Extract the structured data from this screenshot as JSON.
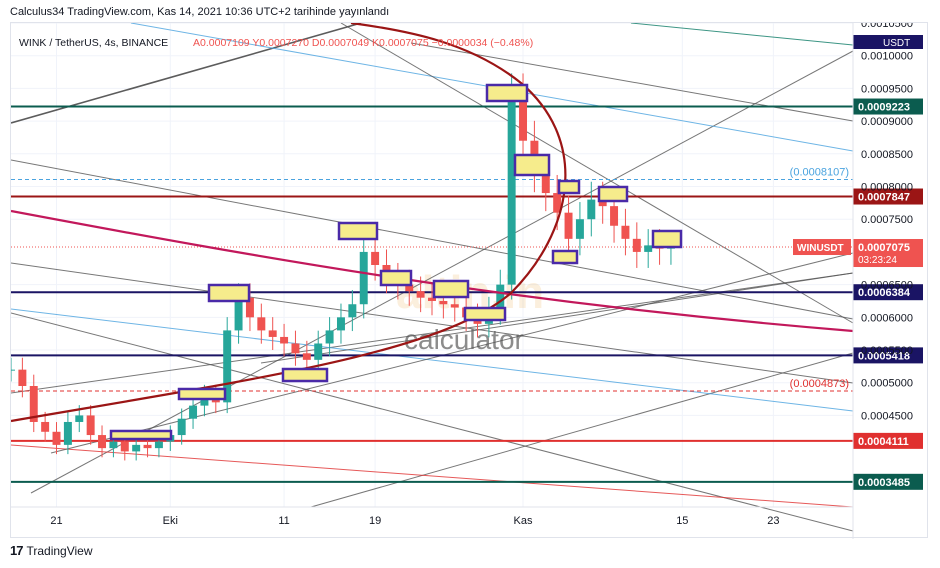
{
  "header": {
    "publish_line": "Calculus34 TradingView.com, Kas 14, 2021 10:36 UTC+2 tarihinde yayınlandı",
    "symbol_line": "WINK / TetherUS, 4s, BINANCE",
    "ohlc_line": "A0.0007109 Y0.0007270 D0.0007049 K0.0007075 −0.0000034 (−0.48%)"
  },
  "footer": {
    "brand": "TradingView"
  },
  "watermark": {
    "brand": "altin.in",
    "sub": "calculator"
  },
  "colors": {
    "navy": "#1a1464",
    "teal": "#0b5c4f",
    "dark_red": "#9b1515",
    "red": "#e0302f",
    "magenta": "#c2185b",
    "blue_thin": "#4aa3df",
    "grey_line": "#555555",
    "candle_up": "#26a69a",
    "candle_down": "#ef5350",
    "box_fill": "#f6ec8c",
    "box_stroke": "#4a2aa8"
  },
  "chart_data": {
    "type": "candlestick",
    "symbol": "WINK / TetherUS",
    "timeframe": "4s",
    "exchange": "BINANCE",
    "y_axis": {
      "unit": "USDT",
      "ylim": [
        0.00031,
        0.00105
      ],
      "ticks": [
        "0.0010500",
        "0.0010000",
        "0.0009500",
        "0.0009000",
        "0.0008500",
        "0.0008000",
        "0.0007500",
        "0.0006500",
        "0.0006000",
        "0.0005500",
        "0.0005000",
        "0.0004500"
      ]
    },
    "x_axis": {
      "tick_labels": [
        "21",
        "Eki",
        "11",
        "19",
        "Kas",
        "15",
        "23"
      ],
      "tick_dates": [
        "2021-09-21",
        "2021-10-01",
        "2021-10-11",
        "2021-10-19",
        "2021-11-01",
        "2021-11-15",
        "2021-11-23"
      ],
      "xlim": [
        "2021-09-17",
        "2021-11-30"
      ]
    },
    "horizontal_levels": [
      {
        "label": "0.0009223",
        "value": 0.0009223,
        "color": "#0b5c4f"
      },
      {
        "label": "0.0007847",
        "value": 0.0007847,
        "color": "#9b1515"
      },
      {
        "label": "0.0006384",
        "value": 0.0006384,
        "color": "#1a1464"
      },
      {
        "label": "0.0005418",
        "value": 0.0005418,
        "color": "#1a1464"
      },
      {
        "label": "0.0004111",
        "value": 0.0004111,
        "color": "#e0302f"
      },
      {
        "label": "0.0003485",
        "value": 0.0003485,
        "color": "#0b5c4f"
      }
    ],
    "dashed_levels": [
      {
        "label": "(0.0008107)",
        "value": 0.0008107,
        "color": "#4aa3df"
      },
      {
        "label": "(0.0004873)",
        "value": 0.0004873,
        "color": "#e0302f"
      }
    ],
    "last_price": {
      "symbol": "WINUSDT",
      "value": "0.0007075",
      "countdown": "03:23:24",
      "price": 0.0007075
    },
    "top_badge": "USDT",
    "candles_close": [
      [
        "2021-09-17",
        0.00052
      ],
      [
        "2021-09-18",
        0.000495
      ],
      [
        "2021-09-19",
        0.00044
      ],
      [
        "2021-09-20",
        0.000425
      ],
      [
        "2021-09-21",
        0.000405
      ],
      [
        "2021-09-22",
        0.00044
      ],
      [
        "2021-09-23",
        0.00045
      ],
      [
        "2021-09-24",
        0.00042
      ],
      [
        "2021-09-25",
        0.0004
      ],
      [
        "2021-09-26",
        0.00041
      ],
      [
        "2021-09-27",
        0.000395
      ],
      [
        "2021-09-28",
        0.000405
      ],
      [
        "2021-09-29",
        0.0004
      ],
      [
        "2021-09-30",
        0.00041
      ],
      [
        "2021-10-01",
        0.00042
      ],
      [
        "2021-10-02",
        0.000445
      ],
      [
        "2021-10-03",
        0.000465
      ],
      [
        "2021-10-04",
        0.00048
      ],
      [
        "2021-10-05",
        0.00047
      ],
      [
        "2021-10-06",
        0.00058
      ],
      [
        "2021-10-07",
        0.00063
      ],
      [
        "2021-10-08",
        0.0006
      ],
      [
        "2021-10-09",
        0.00058
      ],
      [
        "2021-10-10",
        0.00057
      ],
      [
        "2021-10-11",
        0.00056
      ],
      [
        "2021-10-12",
        0.000545
      ],
      [
        "2021-10-13",
        0.000535
      ],
      [
        "2021-10-14",
        0.00056
      ],
      [
        "2021-10-15",
        0.00058
      ],
      [
        "2021-10-16",
        0.0006
      ],
      [
        "2021-10-17",
        0.00062
      ],
      [
        "2021-10-18",
        0.0007
      ],
      [
        "2021-10-19",
        0.00068
      ],
      [
        "2021-10-20",
        0.00066
      ],
      [
        "2021-10-21",
        0.00065
      ],
      [
        "2021-10-22",
        0.00064
      ],
      [
        "2021-10-23",
        0.00063
      ],
      [
        "2021-10-24",
        0.000625
      ],
      [
        "2021-10-25",
        0.00062
      ],
      [
        "2021-10-26",
        0.000615
      ],
      [
        "2021-10-27",
        0.0006
      ],
      [
        "2021-10-28",
        0.00059
      ],
      [
        "2021-10-29",
        0.00061
      ],
      [
        "2021-10-30",
        0.00065
      ],
      [
        "2021-10-31",
        0.00094
      ],
      [
        "2021-11-01",
        0.00087
      ],
      [
        "2021-11-02",
        0.00082
      ],
      [
        "2021-11-03",
        0.00079
      ],
      [
        "2021-11-04",
        0.00076
      ],
      [
        "2021-11-05",
        0.00072
      ],
      [
        "2021-11-06",
        0.00075
      ],
      [
        "2021-11-07",
        0.00078
      ],
      [
        "2021-11-08",
        0.00077
      ],
      [
        "2021-11-09",
        0.00074
      ],
      [
        "2021-11-10",
        0.00072
      ],
      [
        "2021-11-11",
        0.0007
      ],
      [
        "2021-11-12",
        0.00071
      ],
      [
        "2021-11-13",
        0.000705
      ],
      [
        "2021-11-14",
        0.0007075
      ]
    ]
  }
}
